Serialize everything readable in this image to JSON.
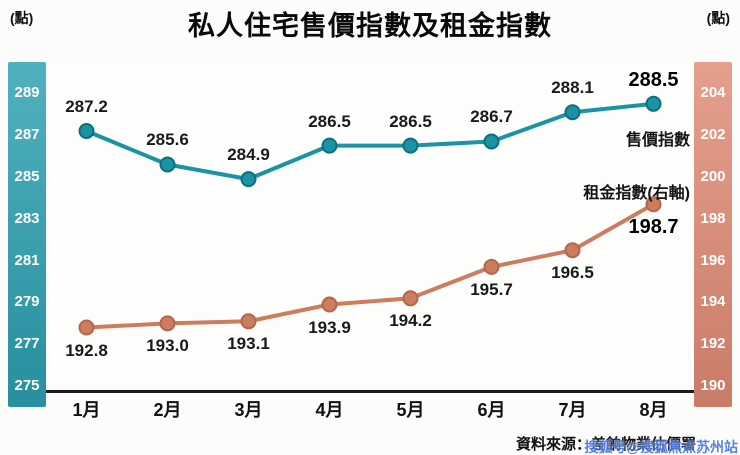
{
  "header": {
    "title": "私人住宅售價指數及租金指數",
    "left_axis_unit": "(點)",
    "right_axis_unit": "(點)"
  },
  "chart_data": {
    "type": "line",
    "title": "私人住宅售價指數及租金指數",
    "categories": [
      "1月",
      "2月",
      "3月",
      "4月",
      "5月",
      "6月",
      "7月",
      "8月"
    ],
    "series": [
      {
        "name": "售價指數",
        "axis": "left",
        "color": "#1b93a5",
        "point_edge": "#0e6e7d",
        "label_pos": "above",
        "values": [
          287.2,
          285.6,
          284.9,
          286.5,
          286.5,
          286.7,
          288.1,
          288.5
        ]
      },
      {
        "name": "租金指數(右軸)",
        "axis": "right",
        "color": "#cc7c5f",
        "point_edge": "#b2664c",
        "label_pos": "below",
        "values": [
          192.8,
          193.0,
          193.1,
          193.9,
          194.2,
          195.7,
          196.5,
          198.7
        ]
      }
    ],
    "left_axis": {
      "ticks": [
        289,
        287,
        285,
        283,
        281,
        279,
        277,
        275
      ],
      "min": 274.0,
      "max": 290.5,
      "band_color": "#2b9fb0"
    },
    "right_axis": {
      "ticks": [
        204,
        202,
        200,
        198,
        196,
        194,
        192,
        190
      ],
      "min": 189.0,
      "max": 205.5,
      "band_color": "#e08a74"
    },
    "legend_position": "inside-right",
    "grid": false
  },
  "footer": {
    "source": "資料來源：差餉物業估價署",
    "watermark": "搜狐号@搜狐焦点苏州站"
  }
}
